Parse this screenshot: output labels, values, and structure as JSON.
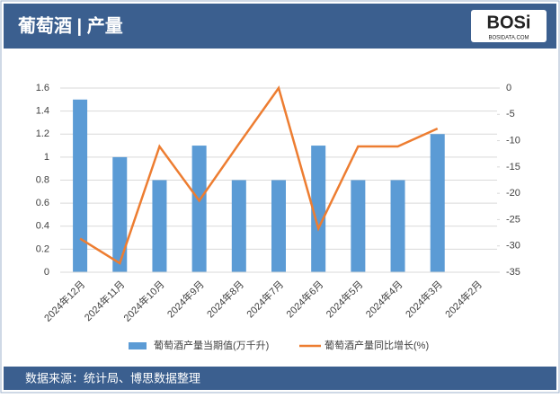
{
  "header": {
    "title": "葡萄酒 | 产量",
    "logo": "BOSi",
    "logo_sub": "BOSIDATA.COM"
  },
  "chart_data": {
    "type": "bar-line",
    "categories": [
      "2024年12月",
      "2024年11月",
      "2024年10月",
      "2024年9月",
      "2024年8月",
      "2024年7月",
      "2024年6月",
      "2024年5月",
      "2024年4月",
      "2024年3月",
      "2024年2月"
    ],
    "series": [
      {
        "name": "葡萄酒产量当期值(万千升)",
        "type": "bar",
        "color": "#5b9bd5",
        "values": [
          1.5,
          1.0,
          0.8,
          1.1,
          0.8,
          0.8,
          1.1,
          0.8,
          0.8,
          1.2,
          null
        ]
      },
      {
        "name": "葡萄酒产量同比增长(%)",
        "type": "line",
        "axis": "y2",
        "color": "#ed7d31",
        "values": [
          -28.6,
          -33.3,
          -11.1,
          -21.4,
          -10.6,
          0,
          -26.7,
          -11.1,
          -11.1,
          -7.7,
          null
        ]
      }
    ],
    "ylim": [
      0,
      1.6
    ],
    "yticks": [
      0,
      0.2,
      0.4,
      0.6,
      0.8,
      1,
      1.2,
      1.4,
      1.6
    ],
    "y2lim": [
      -35,
      0
    ],
    "y2ticks": [
      -35,
      -30,
      -25,
      -20,
      -15,
      -10,
      -5,
      0
    ],
    "grid": true,
    "legend": "bottom"
  },
  "footer": {
    "source": "数据来源：统计局、博思数据整理"
  }
}
